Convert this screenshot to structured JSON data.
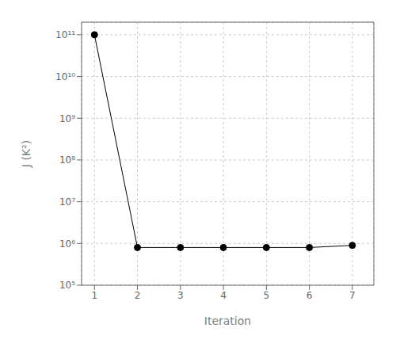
{
  "chart_data": {
    "type": "line",
    "x": [
      1,
      2,
      3,
      4,
      5,
      6,
      7
    ],
    "values": [
      100000000000,
      800000,
      800000,
      800000,
      800000,
      800000,
      900000
    ],
    "xlabel": "Iteration",
    "ylabel": "J (K²)",
    "xlim": [
      0.7,
      7.5
    ],
    "ylim": [
      100000,
      200000000000
    ],
    "xticks": [
      1,
      2,
      3,
      4,
      5,
      6,
      7
    ],
    "yticks": [
      {
        "value": 100000,
        "label": "10⁵"
      },
      {
        "value": 1000000,
        "label": "10⁶"
      },
      {
        "value": 10000000,
        "label": "10⁷"
      },
      {
        "value": 100000000,
        "label": "10⁸"
      },
      {
        "value": 1000000000,
        "label": "10⁹"
      },
      {
        "value": 10000000000,
        "label": "10¹⁰"
      },
      {
        "value": 100000000000,
        "label": "10¹¹"
      }
    ],
    "log": "y",
    "grid": true,
    "color": "#000000",
    "marker": "circle"
  }
}
